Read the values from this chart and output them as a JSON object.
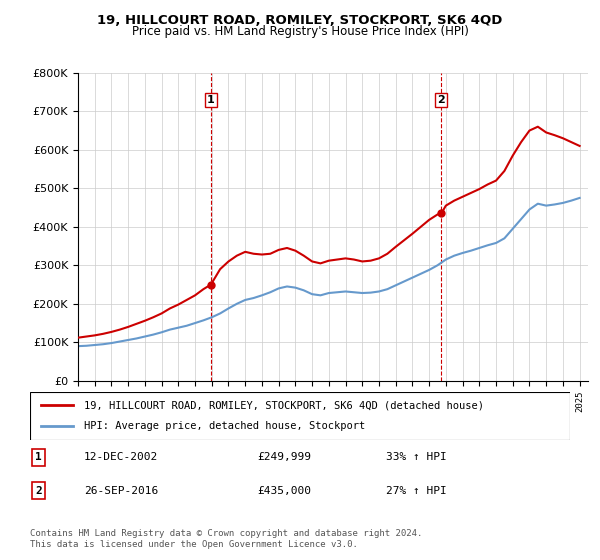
{
  "title": "19, HILLCOURT ROAD, ROMILEY, STOCKPORT, SK6 4QD",
  "subtitle": "Price paid vs. HM Land Registry's House Price Index (HPI)",
  "legend_label_red": "19, HILLCOURT ROAD, ROMILEY, STOCKPORT, SK6 4QD (detached house)",
  "legend_label_blue": "HPI: Average price, detached house, Stockport",
  "transaction1_label": "1",
  "transaction1_date": "12-DEC-2002",
  "transaction1_price": "£249,999",
  "transaction1_hpi": "33% ↑ HPI",
  "transaction2_label": "2",
  "transaction2_date": "26-SEP-2016",
  "transaction2_price": "£435,000",
  "transaction2_hpi": "27% ↑ HPI",
  "footer": "Contains HM Land Registry data © Crown copyright and database right 2024.\nThis data is licensed under the Open Government Licence v3.0.",
  "vline1_x": 2002.95,
  "vline2_x": 2016.73,
  "marker1_x": 2002.95,
  "marker1_y": 249999,
  "marker2_x": 2016.73,
  "marker2_y": 435000,
  "ylim": [
    0,
    800000
  ],
  "xlim_start": 1995.0,
  "xlim_end": 2025.5,
  "red_color": "#cc0000",
  "blue_color": "#6699cc",
  "vline_color": "#cc0000",
  "background_color": "#ffffff",
  "grid_color": "#cccccc"
}
